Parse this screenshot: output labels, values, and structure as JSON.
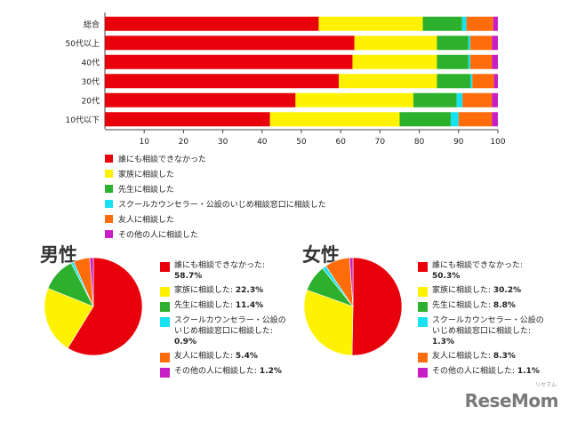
{
  "colors": {
    "red": "#e8000b",
    "yellow": "#fff200",
    "green": "#2db02d",
    "cyan": "#16e2f2",
    "orange": "#ff6d0a",
    "purple": "#c81ec8"
  },
  "chart_data": [
    {
      "type": "bar",
      "orientation": "horizontal-stacked",
      "categories": [
        "総合",
        "50代以上",
        "40代",
        "30代",
        "20代",
        "10代以下"
      ],
      "xlim": [
        0,
        100
      ],
      "xticks": [
        10,
        20,
        30,
        40,
        50,
        60,
        70,
        80,
        90,
        100
      ],
      "series": [
        {
          "name": "誰にも相談できなかった",
          "color": "red",
          "values": [
            54.4,
            63.5,
            63.0,
            59.5,
            48.5,
            42.0
          ]
        },
        {
          "name": "家族に相談した",
          "color": "yellow",
          "values": [
            26.5,
            21.0,
            21.5,
            25.0,
            30.0,
            33.0
          ]
        },
        {
          "name": "先生に相談した",
          "color": "green",
          "values": [
            10.0,
            8.0,
            8.0,
            8.5,
            11.0,
            13.0
          ]
        },
        {
          "name": "スクールカウンセラー・公設のいじめ相談窓口に相談した",
          "color": "cyan",
          "values": [
            1.1,
            0.5,
            0.5,
            0.5,
            1.5,
            2.0
          ]
        },
        {
          "name": "友人に相談した",
          "color": "orange",
          "values": [
            6.8,
            5.5,
            5.5,
            5.5,
            7.5,
            8.5
          ]
        },
        {
          "name": "その他の人に相談した",
          "color": "purple",
          "values": [
            1.2,
            1.5,
            1.5,
            1.0,
            1.5,
            1.5
          ]
        }
      ]
    },
    {
      "type": "pie",
      "title": "男性",
      "slices": [
        {
          "label": "誰にも相談できなかった:",
          "value": 58.7,
          "value_text": "58.7%",
          "color": "red"
        },
        {
          "label": "家族に相談した:",
          "value": 22.3,
          "value_text": "22.3%",
          "color": "yellow"
        },
        {
          "label": "先生に相談した:",
          "value": 11.4,
          "value_text": "11.4%",
          "color": "green"
        },
        {
          "label": "スクールカウンセラー・公設のいじめ相談窓口に相談した:",
          "value": 0.9,
          "value_text": "0.9%",
          "color": "cyan"
        },
        {
          "label": "友人に相談した:",
          "value": 5.4,
          "value_text": "5.4%",
          "color": "orange"
        },
        {
          "label": "その他の人に相談した:",
          "value": 1.2,
          "value_text": "1.2%",
          "color": "purple"
        }
      ]
    },
    {
      "type": "pie",
      "title": "女性",
      "slices": [
        {
          "label": "誰にも相談できなかった:",
          "value": 50.3,
          "value_text": "50.3%",
          "color": "red"
        },
        {
          "label": "家族に相談した:",
          "value": 30.2,
          "value_text": "30.2%",
          "color": "yellow"
        },
        {
          "label": "先生に相談した:",
          "value": 8.8,
          "value_text": "8.8%",
          "color": "green"
        },
        {
          "label": "スクールカウンセラー・公設のいじめ相談窓口に相談した:",
          "value": 1.3,
          "value_text": "1.3%",
          "color": "cyan"
        },
        {
          "label": "友人に相談した:",
          "value": 8.3,
          "value_text": "8.3%",
          "color": "orange"
        },
        {
          "label": "その他の人に相談した:",
          "value": 1.1,
          "value_text": "1.1%",
          "color": "purple"
        }
      ]
    }
  ],
  "logo": {
    "text": "ReseMom",
    "sub": "リセマム"
  }
}
